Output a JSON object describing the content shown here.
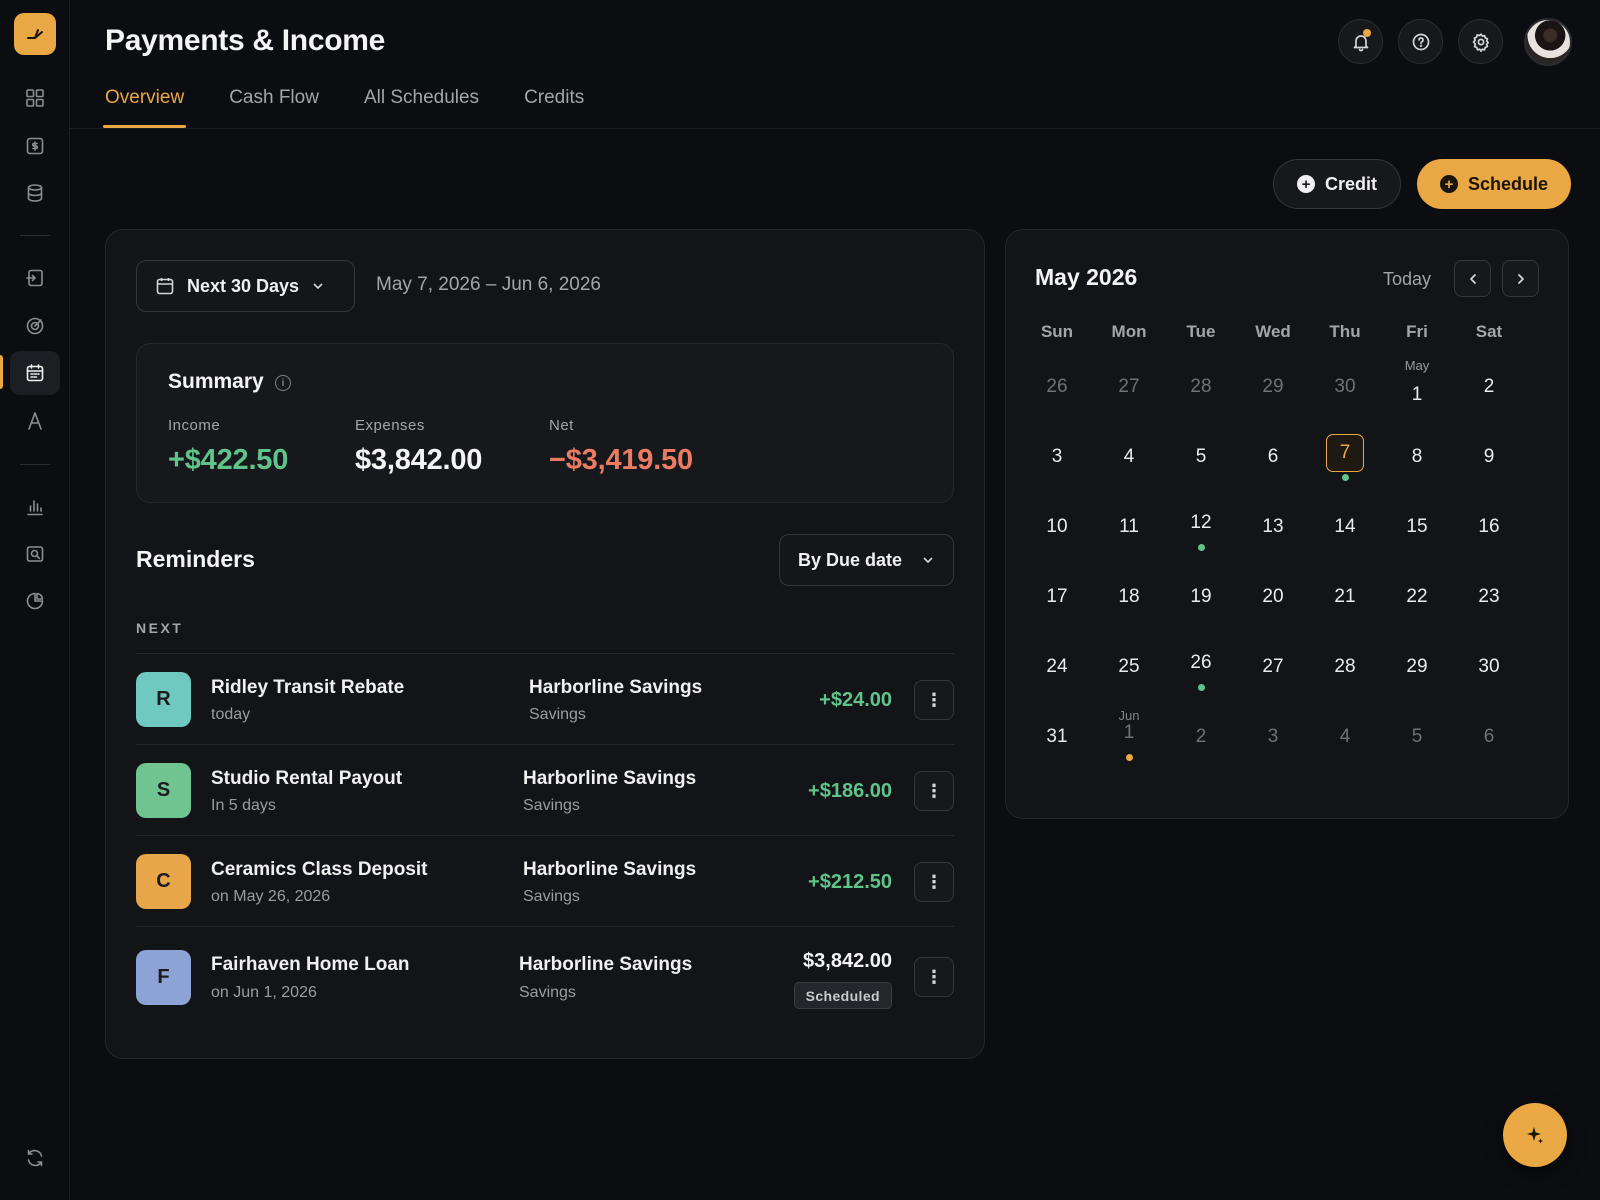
{
  "header": {
    "title": "Payments & Income",
    "tabs": [
      {
        "label": "Overview",
        "active": true
      },
      {
        "label": "Cash Flow"
      },
      {
        "label": "All Schedules"
      },
      {
        "label": "Credits"
      }
    ]
  },
  "actions": {
    "credit_label": "Credit",
    "schedule_label": "Schedule"
  },
  "filter": {
    "range_label": "Next 30 Days",
    "range_text": "May 7, 2026 – Jun 6, 2026"
  },
  "summary": {
    "title": "Summary",
    "income_label": "Income",
    "income_value": "+$422.50",
    "expenses_label": "Expenses",
    "expenses_value": "$3,842.00",
    "net_label": "Net",
    "net_value": "−$3,419.50"
  },
  "reminders": {
    "title": "Reminders",
    "sort_label": "By Due date",
    "group_label": "NEXT",
    "items": [
      {
        "initial": "R",
        "name": "Ridley Transit Rebate",
        "due": "today",
        "account": "Harborline Savings",
        "account_type": "Savings",
        "amount": "+$24.00",
        "avatar_color": "#6fc9c0",
        "positive": true
      },
      {
        "initial": "S",
        "name": "Studio Rental Payout",
        "due": "In 5 days",
        "account": "Harborline Savings",
        "account_type": "Savings",
        "amount": "+$186.00",
        "avatar_color": "#6fc48f",
        "positive": true
      },
      {
        "initial": "C",
        "name": "Ceramics Class Deposit",
        "due": "on May 26, 2026",
        "account": "Harborline Savings",
        "account_type": "Savings",
        "amount": "+$212.50",
        "avatar_color": "#e8a64a",
        "positive": true
      },
      {
        "initial": "F",
        "name": "Fairhaven Home Loan",
        "due": "on Jun 1, 2026",
        "account": "Harborline Savings",
        "account_type": "Savings",
        "amount": "$3,842.00",
        "badge": "Scheduled",
        "avatar_color": "#8da3d6",
        "positive": false
      }
    ]
  },
  "calendar": {
    "month_title": "May 2026",
    "today_label": "Today",
    "weekdays": [
      "Sun",
      "Mon",
      "Tue",
      "Wed",
      "Thu",
      "Fri",
      "Sat"
    ],
    "weeks": [
      [
        {
          "d": "26",
          "muted": true
        },
        {
          "d": "27",
          "muted": true
        },
        {
          "d": "28",
          "muted": true
        },
        {
          "d": "29",
          "muted": true
        },
        {
          "d": "30",
          "muted": true
        },
        {
          "d": "1",
          "label": "May"
        },
        {
          "d": "2"
        }
      ],
      [
        {
          "d": "3"
        },
        {
          "d": "4"
        },
        {
          "d": "5"
        },
        {
          "d": "6"
        },
        {
          "d": "7",
          "today": true,
          "dot": "#5fc48a"
        },
        {
          "d": "8"
        },
        {
          "d": "9"
        }
      ],
      [
        {
          "d": "10"
        },
        {
          "d": "11"
        },
        {
          "d": "12",
          "dot": "#5fc48a"
        },
        {
          "d": "13"
        },
        {
          "d": "14"
        },
        {
          "d": "15"
        },
        {
          "d": "16"
        }
      ],
      [
        {
          "d": "17"
        },
        {
          "d": "18"
        },
        {
          "d": "19"
        },
        {
          "d": "20"
        },
        {
          "d": "21"
        },
        {
          "d": "22"
        },
        {
          "d": "23"
        }
      ],
      [
        {
          "d": "24"
        },
        {
          "d": "25"
        },
        {
          "d": "26",
          "dot": "#5fc48a"
        },
        {
          "d": "27"
        },
        {
          "d": "28"
        },
        {
          "d": "29"
        },
        {
          "d": "30"
        }
      ],
      [
        {
          "d": "31"
        },
        {
          "d": "1",
          "muted": true,
          "label": "Jun",
          "dot": "#e9a843"
        },
        {
          "d": "2",
          "muted": true
        },
        {
          "d": "3",
          "muted": true
        },
        {
          "d": "4",
          "muted": true
        },
        {
          "d": "5",
          "muted": true
        },
        {
          "d": "6",
          "muted": true
        }
      ]
    ]
  },
  "colors": {
    "accent": "#e9a843",
    "positive": "#5fc48a",
    "negative": "#eb7b62"
  }
}
